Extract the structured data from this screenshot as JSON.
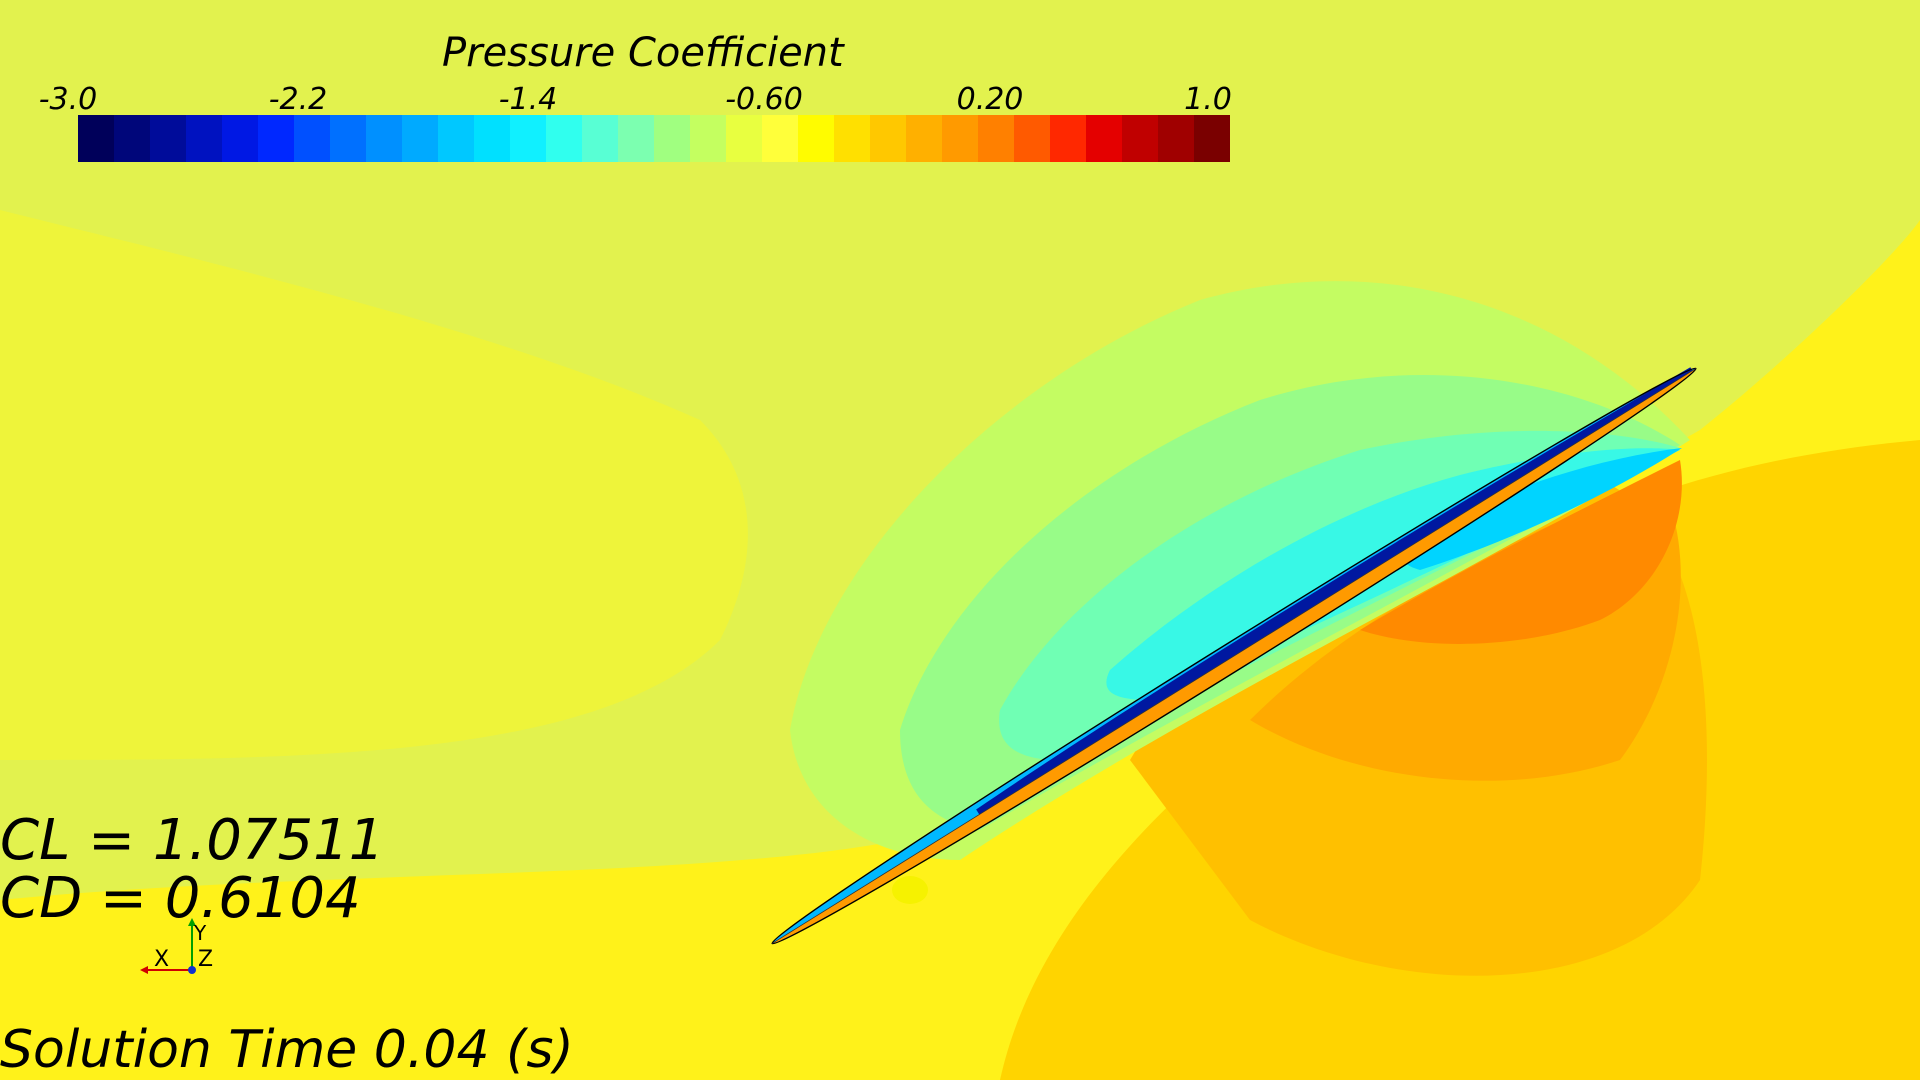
{
  "colorbar": {
    "title": "Pressure Coefficient",
    "ticks": [
      "-3.0",
      "-2.2",
      "-1.4",
      "-0.60",
      "0.20",
      "1.0"
    ],
    "range": [
      -3.0,
      1.0
    ],
    "colors": [
      "#00005a",
      "#00067a",
      "#000c9a",
      "#0012c0",
      "#0018e4",
      "#0028ff",
      "#0050ff",
      "#0070ff",
      "#0090ff",
      "#00aaff",
      "#00c8ff",
      "#00e0ff",
      "#10f0ff",
      "#30ffee",
      "#58ffd4",
      "#7cffb0",
      "#a0ff80",
      "#c4ff60",
      "#e8ff40",
      "#ffff3a",
      "#fffc00",
      "#ffe000",
      "#ffc800",
      "#ffb000",
      "#ff9a00",
      "#ff8000",
      "#ff5a00",
      "#ff2800",
      "#e40000",
      "#c00000",
      "#a00000",
      "#7a0000"
    ]
  },
  "results": {
    "cl": "CL = 1.07511",
    "cd": "CD = 0.6104"
  },
  "axes_triad": {
    "x": "X",
    "y": "Y",
    "z": "Z"
  },
  "solution_time": "Solution Time 0.04 (s)"
}
